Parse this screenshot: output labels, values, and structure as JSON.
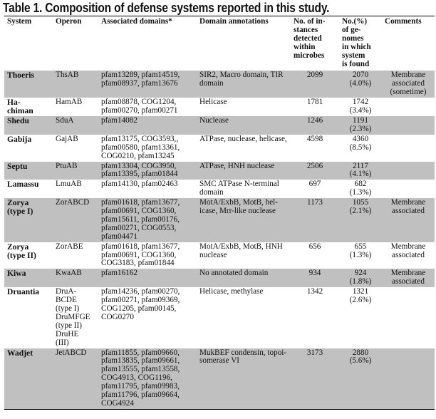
{
  "title": "Table 1. Composition of defense systems reported in this study.",
  "columns": [
    "System",
    "Operon",
    "Associated domains*",
    "Domain annotations",
    "No. of in-\nstances\ndetected\nwithin\nmicrobes",
    "No.(%)\nof ge-\nnomes\nin which\nsystem\nis found",
    "Comments"
  ],
  "rows": [
    {
      "system": "Thoeris",
      "operon": "ThsAB",
      "domains": "pfam13289, pfam14519,\npfam08937, pfam13676",
      "annotations": "SIR2, Macro domain, TIR\ndomain",
      "instances": "2099",
      "genomes": "2070\n(4.0%)",
      "comments": "Membrane\nassociated\n(sometime)",
      "shaded": true
    },
    {
      "system": "Ha-\nchiman",
      "operon": "HamAB",
      "domains": "pfam08878, COG1204,\npfam00270, pfam00271",
      "annotations": "Helicase",
      "instances": "1781",
      "genomes": "1742\n(3.4%)",
      "comments": "",
      "shaded": false
    },
    {
      "system": "Shedu",
      "operon": "SduA",
      "domains": "pfam14082",
      "annotations": "Nuclease",
      "instances": "1246",
      "genomes": "1191\n(2.3%)",
      "comments": "",
      "shaded": true
    },
    {
      "system": "Gabija",
      "operon": "GajAB",
      "domains": "pfam13175, COG3593,,\npfam00580, pfam13361,\nCOG0210, pfam13245",
      "annotations": "ATPase, nuclease, helicase,",
      "instances": "4598",
      "genomes": "4360\n(8.5%)",
      "comments": "",
      "shaded": false
    },
    {
      "system": "Septu",
      "operon": "PtuAB",
      "domains": "pfam13304, COG3950,\npfam13395, pfam01844",
      "annotations": "ATPase, HNH nuclease",
      "instances": "2506",
      "genomes": "2117\n(4.1%)",
      "comments": "",
      "shaded": true
    },
    {
      "system": "Lamassu",
      "operon": "LmuAB",
      "domains": "pfam14130, pfam02463",
      "annotations": "SMC ATPase N-terminal\ndomain",
      "instances": "697",
      "genomes": "682\n(1.3%)",
      "comments": "",
      "shaded": false
    },
    {
      "system": "Zorya\n(type I)",
      "operon": "ZorABCD",
      "domains": "pfam01618, pfam13677,\npfam00691, COG1360,\npfam15611, pfam00176,\npfam00271, COG0553,\npfam04471",
      "annotations": "MotA/ExbB, MotB, hel-\nicase, Mrr-like nuclease",
      "instances": "1173",
      "genomes": "1055\n(2.1%)",
      "comments": "Membrane\nassociated",
      "shaded": true
    },
    {
      "system": "Zorya\n(type II)",
      "operon": "ZorABE",
      "domains": "pfam01618, pfam13677,\npfam00691, COG1360,\nCOG3183, pfam01844",
      "annotations": "MotA/ExbB, MotB, HNH\nnuclease",
      "instances": "656",
      "genomes": "655\n(1.3%)",
      "comments": "Membrane\nassociated",
      "shaded": false
    },
    {
      "system": "Kiwa",
      "operon": "KwaAB",
      "domains": "pfam16162",
      "annotations": "No annotated domain",
      "instances": "934",
      "genomes": "924\n(1.8%)",
      "comments": "Membrane\nassociated",
      "shaded": true
    },
    {
      "system": "Druantia",
      "operon": "DruA-\nBCDE\n(type I)\nDruMFGE\n(type II)\nDruHE\n(III)",
      "domains": "pfam14236, pfam00270,\npfam00271, pfam09369,\nCOG1205, pfam00145,\nCOG0270",
      "annotations": "Helicase, methylase",
      "instances": "1342",
      "genomes": "1321\n(2.6%)",
      "comments": "",
      "shaded": false
    },
    {
      "system": "Wadjet",
      "operon": "JetABCD",
      "domains": "pfam11855, pfam09660,\npfam13835, pfam09661,\npfam13555, pfam13558,\nCOG4913, COG1196,\npfam11795, pfam09983,\npfam11796, pfam09664,\nCOG4924",
      "annotations": "MukBEF condensin, topoi-\nsomerase VI",
      "instances": "3173",
      "genomes": "2880\n(5.6%)",
      "comments": "",
      "shaded": true
    }
  ]
}
